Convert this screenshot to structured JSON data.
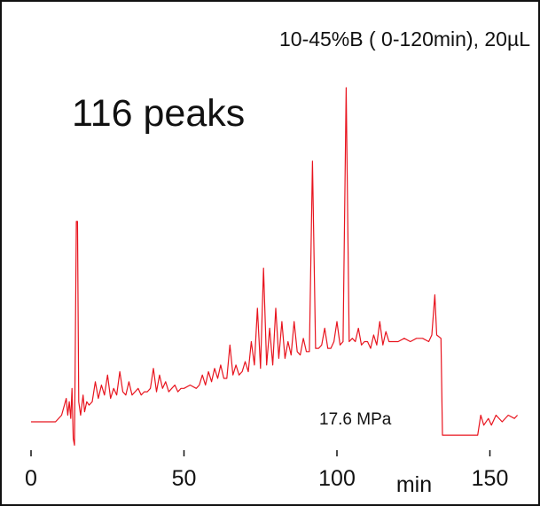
{
  "chart_data": {
    "type": "line",
    "title": "",
    "xlabel": "min",
    "ylabel": "",
    "xlim": [
      -3,
      160
    ],
    "x_ticks": [
      "0",
      "50",
      "100",
      "150"
    ],
    "x_tick_values": [
      0,
      50,
      100,
      150
    ],
    "annotations": {
      "conditions": "10-45%B ( 0-120min), 20µL",
      "peak_count": "116 peaks",
      "pressure": "17.6 MPa"
    },
    "line_color": "#e8141e",
    "series": [
      {
        "values": [
          [
            0,
            0.0
          ],
          [
            8,
            0.0
          ],
          [
            10,
            0.02
          ],
          [
            11.5,
            0.07
          ],
          [
            12,
            0.02
          ],
          [
            12.5,
            0.06
          ],
          [
            13,
            0.01
          ],
          [
            13.4,
            0.1
          ],
          [
            13.8,
            -0.05
          ],
          [
            14.2,
            -0.07
          ],
          [
            14.8,
            0.6
          ],
          [
            15.2,
            0.6
          ],
          [
            15.6,
            0.06
          ],
          [
            16.2,
            0.02
          ],
          [
            17,
            0.08
          ],
          [
            17.5,
            0.03
          ],
          [
            18.2,
            0.06
          ],
          [
            19,
            0.05
          ],
          [
            20,
            0.06
          ],
          [
            21,
            0.12
          ],
          [
            22,
            0.07
          ],
          [
            23,
            0.11
          ],
          [
            24,
            0.08
          ],
          [
            25,
            0.14
          ],
          [
            26,
            0.07
          ],
          [
            27,
            0.1
          ],
          [
            28,
            0.08
          ],
          [
            29,
            0.15
          ],
          [
            30,
            0.09
          ],
          [
            31,
            0.08
          ],
          [
            32,
            0.12
          ],
          [
            33,
            0.08
          ],
          [
            34,
            0.09
          ],
          [
            35,
            0.1
          ],
          [
            36,
            0.08
          ],
          [
            37,
            0.09
          ],
          [
            38,
            0.09
          ],
          [
            39,
            0.1
          ],
          [
            40,
            0.16
          ],
          [
            41,
            0.09
          ],
          [
            42,
            0.14
          ],
          [
            43,
            0.1
          ],
          [
            44,
            0.12
          ],
          [
            45,
            0.09
          ],
          [
            46,
            0.1
          ],
          [
            47,
            0.11
          ],
          [
            48,
            0.09
          ],
          [
            49,
            0.1
          ],
          [
            50,
            0.1
          ],
          [
            52,
            0.11
          ],
          [
            54,
            0.1
          ],
          [
            55,
            0.11
          ],
          [
            56,
            0.14
          ],
          [
            57,
            0.11
          ],
          [
            58,
            0.15
          ],
          [
            59,
            0.12
          ],
          [
            60,
            0.16
          ],
          [
            61,
            0.13
          ],
          [
            62,
            0.17
          ],
          [
            63,
            0.13
          ],
          [
            64,
            0.13
          ],
          [
            65,
            0.23
          ],
          [
            66,
            0.14
          ],
          [
            67,
            0.17
          ],
          [
            68,
            0.14
          ],
          [
            69,
            0.15
          ],
          [
            70,
            0.18
          ],
          [
            71,
            0.15
          ],
          [
            72,
            0.24
          ],
          [
            73,
            0.17
          ],
          [
            74,
            0.34
          ],
          [
            75,
            0.16
          ],
          [
            76,
            0.46
          ],
          [
            77,
            0.17
          ],
          [
            78,
            0.28
          ],
          [
            79,
            0.17
          ],
          [
            80,
            0.34
          ],
          [
            81,
            0.19
          ],
          [
            82,
            0.3
          ],
          [
            83,
            0.19
          ],
          [
            84,
            0.24
          ],
          [
            85,
            0.2
          ],
          [
            86,
            0.3
          ],
          [
            87,
            0.21
          ],
          [
            88,
            0.2
          ],
          [
            89,
            0.25
          ],
          [
            90,
            0.21
          ],
          [
            91,
            0.21
          ],
          [
            92,
            0.78
          ],
          [
            93,
            0.22
          ],
          [
            94,
            0.22
          ],
          [
            95,
            0.23
          ],
          [
            96,
            0.28
          ],
          [
            97,
            0.22
          ],
          [
            98,
            0.22
          ],
          [
            99,
            0.24
          ],
          [
            100,
            0.3
          ],
          [
            101,
            0.23
          ],
          [
            102,
            0.24
          ],
          [
            103,
            1.0
          ],
          [
            104,
            0.24
          ],
          [
            105,
            0.25
          ],
          [
            106,
            0.24
          ],
          [
            107,
            0.28
          ],
          [
            108,
            0.23
          ],
          [
            109,
            0.24
          ],
          [
            110,
            0.24
          ],
          [
            111,
            0.22
          ],
          [
            112,
            0.26
          ],
          [
            113,
            0.23
          ],
          [
            114,
            0.3
          ],
          [
            115,
            0.23
          ],
          [
            116,
            0.27
          ],
          [
            117,
            0.24
          ],
          [
            118,
            0.24
          ],
          [
            120,
            0.24
          ],
          [
            122,
            0.25
          ],
          [
            124,
            0.24
          ],
          [
            126,
            0.25
          ],
          [
            128,
            0.25
          ],
          [
            130,
            0.24
          ],
          [
            131,
            0.26
          ],
          [
            132,
            0.38
          ],
          [
            132.6,
            0.26
          ],
          [
            134,
            0.25
          ],
          [
            134.5,
            -0.04
          ],
          [
            146,
            -0.04
          ],
          [
            147,
            0.02
          ],
          [
            148,
            -0.01
          ],
          [
            149.5,
            0.01
          ],
          [
            150.5,
            -0.01
          ],
          [
            152,
            0.02
          ],
          [
            154,
            0.0
          ],
          [
            156,
            0.02
          ],
          [
            158,
            0.01
          ],
          [
            159,
            0.02
          ]
        ]
      }
    ]
  }
}
